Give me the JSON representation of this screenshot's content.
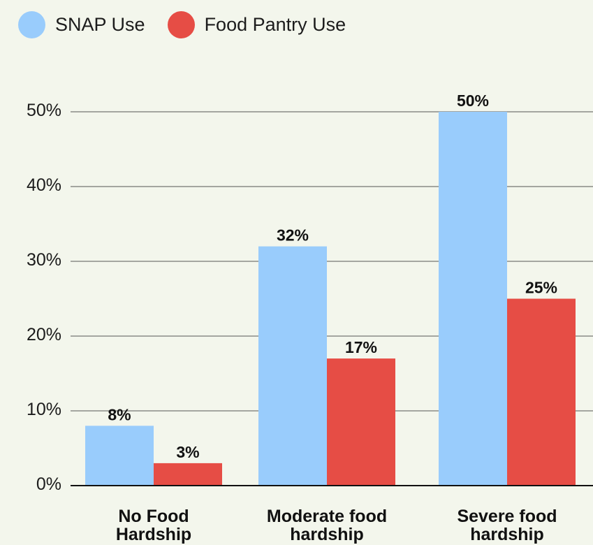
{
  "legend": [
    {
      "label": "SNAP Use",
      "color": "#99ccfc"
    },
    {
      "label": "Food Pantry Use",
      "color": "#e64d45"
    }
  ],
  "chart_data": {
    "type": "bar",
    "categories": [
      [
        "No Food",
        "Hardship"
      ],
      [
        "Moderate food",
        "hardship"
      ],
      [
        "Severe food",
        "hardship"
      ]
    ],
    "series": [
      {
        "name": "SNAP Use",
        "values": [
          8,
          32,
          50
        ],
        "labels": [
          "8%",
          "32%",
          "50%"
        ],
        "color": "#99ccfc"
      },
      {
        "name": "Food Pantry Use",
        "values": [
          3,
          17,
          25
        ],
        "labels": [
          "3%",
          "17%",
          "25%"
        ],
        "color": "#e64d45"
      }
    ],
    "yticks": [
      0,
      10,
      20,
      30,
      40,
      50
    ],
    "ytick_labels": [
      "0%",
      "10%",
      "20%",
      "30%",
      "40%",
      "50%"
    ],
    "ylim": [
      0,
      50
    ],
    "title": "",
    "xlabel": "",
    "ylabel": "",
    "grid": true,
    "legend_position": "top-left"
  }
}
